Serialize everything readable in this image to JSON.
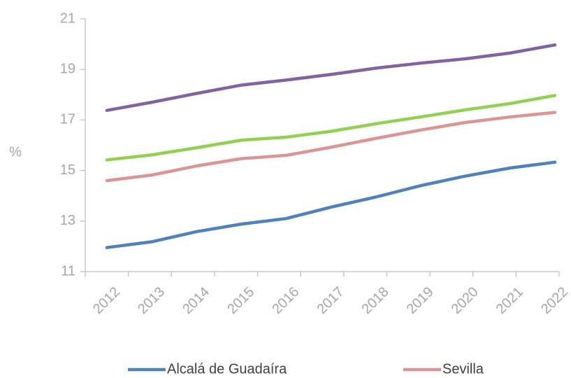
{
  "chart_data": {
    "type": "line",
    "y_label": "%",
    "categories": [
      "2012",
      "2013",
      "2014",
      "2015",
      "2016",
      "2017",
      "2018",
      "2019",
      "2020",
      "2021",
      "2022"
    ],
    "series": [
      {
        "name": "Alcalá de Guadaíra",
        "color": "#4f81bd",
        "values": [
          11.95,
          12.18,
          12.58,
          12.88,
          13.1,
          13.55,
          13.95,
          14.4,
          14.78,
          15.1,
          15.33
        ]
      },
      {
        "name": "Sevilla",
        "color": "#d99694",
        "values": [
          14.6,
          14.82,
          15.18,
          15.47,
          15.6,
          15.92,
          16.27,
          16.6,
          16.9,
          17.12,
          17.3
        ]
      },
      {
        "color": "#92d050",
        "values": [
          15.42,
          15.62,
          15.9,
          16.2,
          16.32,
          16.55,
          16.85,
          17.12,
          17.4,
          17.65,
          17.97
        ]
      },
      {
        "color": "#8064a2",
        "values": [
          17.38,
          17.7,
          18.05,
          18.38,
          18.58,
          18.8,
          19.05,
          19.25,
          19.42,
          19.65,
          19.97
        ]
      }
    ],
    "ylim": [
      11,
      21
    ],
    "yticks": [
      11,
      13,
      15,
      17,
      19,
      21
    ],
    "grid": false
  }
}
